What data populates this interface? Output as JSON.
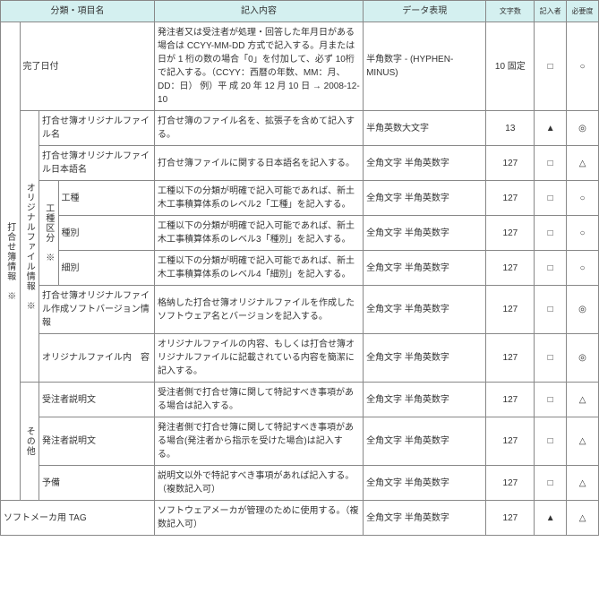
{
  "headers": {
    "category": "分類・項目名",
    "content": "記入内容",
    "data": "データ表現",
    "chars": "文字数",
    "who": "記入者",
    "req": "必要度"
  },
  "side": {
    "meet": "打合せ簿情報　※",
    "orig": "オリジナルファイル情報　※",
    "kubun": "工種区分　※",
    "other": "その他"
  },
  "rows": {
    "r1": {
      "item": "完了日付",
      "desc": "発注者又は受注者が処理・回答した年月日がある場合は CCYY-MM-DD 方式で記入する。月または日が 1 桁の数の場合「0」を付加して、必ず 10桁で記入する。（CCYY：西暦の年数、MM：月、DD：日）\n例）平 成 20 年 12 月 10 日 → 2008-12-10",
      "data": "半角数字\n-\n(HYPHEN-MINUS)",
      "num": "10 固定",
      "who": "□",
      "req": "○"
    },
    "r2": {
      "item": "打合せ簿オリジナルファイル名",
      "desc": "打合せ簿のファイル名を、拡張子を含めて記入する。",
      "data": "半角英数大文字",
      "num": "13",
      "who": "▲",
      "req": "◎"
    },
    "r3": {
      "item": "打合せ簿オリジナルファイル日本語名",
      "desc": "打合せ簿ファイルに関する日本語名を記入する。",
      "data": "全角文字\n半角英数字",
      "num": "127",
      "who": "□",
      "req": "△"
    },
    "r4": {
      "item": "工種",
      "desc": "工種以下の分類が明確で記入可能であれば、新土木工事積算体系のレベル2「工種」を記入する。",
      "data": "全角文字\n半角英数字",
      "num": "127",
      "who": "□",
      "req": "○"
    },
    "r5": {
      "item": "種別",
      "desc": "工種以下の分類が明確で記入可能であれば、新土木工事積算体系のレベル3「種別」を記入する。",
      "data": "全角文字\n半角英数字",
      "num": "127",
      "who": "□",
      "req": "○"
    },
    "r6": {
      "item": "細別",
      "desc": "工種以下の分類が明確で記入可能であれば、新土木工事積算体系のレベル4「細別」を記入する。",
      "data": "全角文字\n半角英数字",
      "num": "127",
      "who": "□",
      "req": "○"
    },
    "r7": {
      "item": "打合せ簿オリジナルファイル作成ソフトバージョン情報",
      "desc": "格納した打合せ簿オリジナルファイルを作成したソフトウェア名とバージョンを記入する。",
      "data": "全角文字\n半角英数字",
      "num": "127",
      "who": "□",
      "req": "◎"
    },
    "r8": {
      "item": "オリジナルファイル内　容",
      "desc": "オリジナルファイルの内容、もしくは打合せ簿オリジナルファイルに記載されている内容を簡潔に記入する。",
      "data": "全角文字\n半角英数字",
      "num": "127",
      "who": "□",
      "req": "◎"
    },
    "r9": {
      "item": "受注者説明文",
      "desc": "受注者側で打合せ簿に関して特記すべき事項がある場合は記入する。",
      "data": "全角文字\n半角英数字",
      "num": "127",
      "who": "□",
      "req": "△"
    },
    "r10": {
      "item": "発注者説明文",
      "desc": "発注者側で打合せ簿に関して特記すべき事項がある場合(発注者から指示を受けた場合)は記入する。",
      "data": "全角文字\n半角英数字",
      "num": "127",
      "who": "□",
      "req": "△"
    },
    "r11": {
      "item": "予備",
      "desc": "説明文以外で特記すべき事項があれば記入する。（複数記入可）",
      "data": "全角文字\n半角英数字",
      "num": "127",
      "who": "□",
      "req": "△"
    },
    "r12": {
      "item": "ソフトメーカ用 TAG",
      "desc": "ソフトウェアメーカが管理のために使用する。（複数記入可）",
      "data": "全角文字\n半角英数字",
      "num": "127",
      "who": "▲",
      "req": "△"
    }
  }
}
